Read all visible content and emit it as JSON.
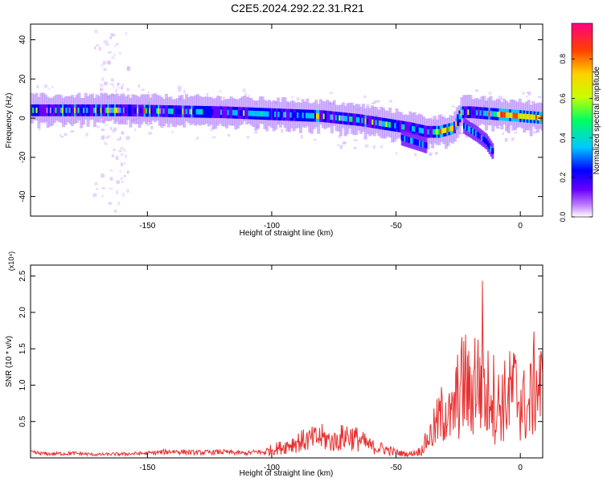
{
  "title": "C2E5.2024.292.22.31.R21",
  "chart_data": [
    {
      "type": "heatmap",
      "xlabel": "Height of straight line (km)",
      "ylabel": "Frequency (Hz)",
      "xlim": [
        -197,
        9
      ],
      "ylim": [
        -50,
        48
      ],
      "xticks": [
        -150,
        -100,
        -50,
        0
      ],
      "yticks": [
        -40,
        -20,
        0,
        20,
        40
      ],
      "colorbar": {
        "label": "Normalized spectral amplitude",
        "range": [
          0,
          0.98
        ],
        "ticks": [
          "0.0",
          "0.2",
          "0.4",
          "0.6",
          "0.8"
        ],
        "colors": [
          "#ffffff",
          "#c080ff",
          "#6a00ff",
          "#0000ff",
          "#00c8ff",
          "#00ff60",
          "#c8ff00",
          "#ffd000",
          "#ff4000",
          "#ff0080"
        ]
      },
      "ridge": {
        "x": [
          -197,
          -180,
          -160,
          -140,
          -120,
          -100,
          -80,
          -65,
          -55,
          -45,
          -38,
          -33,
          -30,
          -27,
          -24,
          -20,
          -15,
          -10,
          -5,
          0,
          9
        ],
        "frequency": [
          4,
          4,
          4,
          3.5,
          3,
          2,
          1,
          -1,
          -3,
          -5,
          -7,
          -7,
          -6,
          -5,
          3,
          3,
          2.5,
          2,
          1.5,
          1,
          0
        ]
      },
      "secondary_branch": {
        "x": [
          -48,
          -43,
          -38
        ],
        "frequency": [
          -10,
          -12,
          -14
        ]
      },
      "descending_branch": {
        "x": [
          -23,
          -18,
          -14,
          -11
        ],
        "frequency": [
          -4,
          -8,
          -12,
          -18
        ]
      }
    },
    {
      "type": "line",
      "xlabel": "Height of straight line (km)",
      "ylabel": "SNR (10 * v/v)",
      "y_multiplier": "(x10⁴)",
      "xlim": [
        -197,
        9
      ],
      "ylim": [
        0,
        2.65
      ],
      "xticks": [
        -150,
        -100,
        -50,
        0
      ],
      "yticks": [
        "0.5",
        "1.0",
        "1.5",
        "2.0",
        "2.5"
      ],
      "line_color": "#e83030",
      "series": [
        {
          "x": [
            -197,
            -190,
            -180,
            -170,
            -160,
            -150,
            -140,
            -130,
            -120,
            -110,
            -105,
            -100,
            -95,
            -90,
            -85,
            -80,
            -75,
            -70,
            -65,
            -60,
            -55,
            -50,
            -45,
            -40,
            -38,
            -35,
            -32,
            -30,
            -28,
            -25,
            -22,
            -20,
            -18,
            -16,
            -15,
            -14,
            -12,
            -10,
            -8,
            -5,
            -3,
            0,
            3,
            6,
            9
          ],
          "values": [
            0.08,
            0.06,
            0.07,
            0.05,
            0.06,
            0.07,
            0.1,
            0.08,
            0.09,
            0.07,
            0.1,
            0.18,
            0.25,
            0.35,
            0.4,
            0.45,
            0.35,
            0.5,
            0.4,
            0.25,
            0.2,
            0.12,
            0.08,
            0.15,
            0.35,
            0.6,
            0.9,
            1.1,
            0.8,
            1.4,
            1.7,
            1.2,
            1.9,
            1.5,
            2.6,
            1.0,
            1.8,
            1.1,
            1.2,
            1.3,
            1.5,
            1.3,
            1.0,
            1.7,
            1.4
          ]
        }
      ]
    }
  ]
}
